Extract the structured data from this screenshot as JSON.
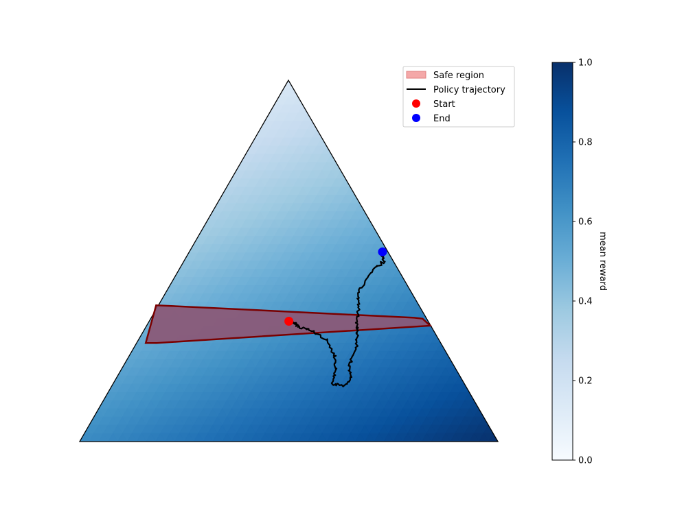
{
  "chart_data": {
    "type": "simplex-heatmap",
    "colormap": "Blues",
    "simplex": {
      "corners": [
        "top",
        "bottom-left",
        "bottom-right"
      ],
      "reward_at_corner": {
        "top": 0.15,
        "bottom-left": 0.65,
        "bottom-right": 1.0
      }
    },
    "safe_region": {
      "label": "Safe region",
      "fill_color": "#f4a8a8",
      "edge_color": "#8b0000",
      "band_barycentric": {
        "weight_top_min": 0.31,
        "weight_top_max": 0.34
      }
    },
    "trajectory": {
      "label": "Policy trajectory",
      "color": "#000000",
      "barycentric_points": [
        [
          0.333,
          0.333,
          0.334
        ],
        [
          0.33,
          0.325,
          0.345
        ],
        [
          0.318,
          0.315,
          0.367
        ],
        [
          0.305,
          0.29,
          0.405
        ],
        [
          0.28,
          0.268,
          0.452
        ],
        [
          0.24,
          0.27,
          0.49
        ],
        [
          0.195,
          0.29,
          0.515
        ],
        [
          0.16,
          0.315,
          0.525
        ],
        [
          0.155,
          0.29,
          0.555
        ],
        [
          0.175,
          0.265,
          0.56
        ],
        [
          0.21,
          0.25,
          0.54
        ],
        [
          0.265,
          0.205,
          0.53
        ],
        [
          0.302,
          0.185,
          0.513
        ],
        [
          0.33,
          0.172,
          0.498
        ],
        [
          0.375,
          0.145,
          0.48
        ],
        [
          0.412,
          0.128,
          0.46
        ],
        [
          0.47,
          0.066,
          0.464
        ],
        [
          0.5,
          0.022,
          0.478
        ],
        [
          0.515,
          0.018,
          0.467
        ],
        [
          0.525,
          0.013,
          0.462
        ]
      ]
    },
    "start": {
      "label": "Start",
      "color": "#ff0000",
      "barycentric": [
        0.333,
        0.333,
        0.334
      ]
    },
    "end": {
      "label": "End",
      "color": "#0000ff",
      "barycentric": [
        0.525,
        0.013,
        0.462
      ]
    },
    "colorbar": {
      "label": "mean reward",
      "range": [
        0,
        1
      ],
      "ticks": [
        "0.0",
        "0.2",
        "0.4",
        "0.6",
        "0.8",
        "1.0"
      ]
    },
    "legend": {
      "placement": "upper-right of simplex",
      "entries": [
        "Safe region",
        "Policy trajectory",
        "Start",
        "End"
      ]
    }
  }
}
